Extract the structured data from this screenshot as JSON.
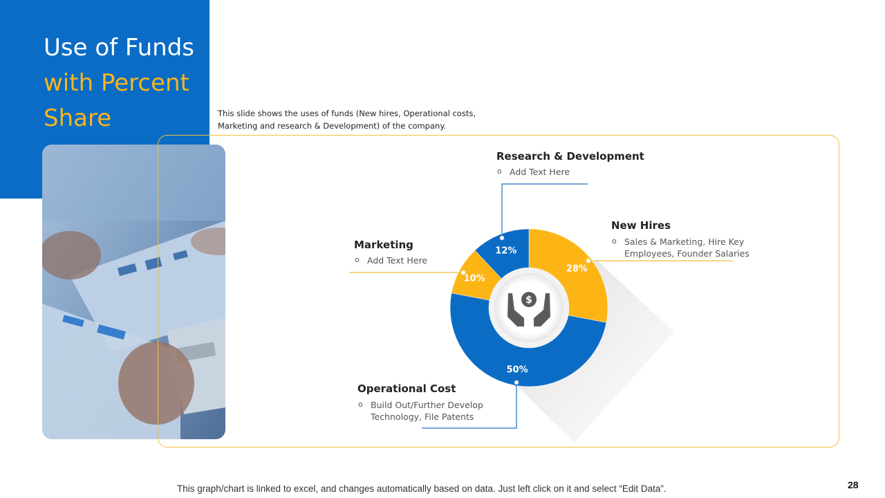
{
  "slide": {
    "title_line1": "Use of Funds",
    "title_line2": "with Percent",
    "title_line3": "Share",
    "subtitle_line1": "This slide shows the uses of funds (New hires, Operational costs,",
    "subtitle_line2": "Marketing and research & Development) of the company.",
    "footer": "This graph/chart is linked to excel, and changes automatically based on data. Just left click on it and select “Edit Data”.",
    "page_number": "28"
  },
  "colors": {
    "blue": "#0a6cc4",
    "yellow": "#fdb515",
    "frame": "#f2bf3a",
    "icon": "#5a5a5a"
  },
  "icons": {
    "center": "hands-holding-dollar-icon",
    "bullet": "circle-outline-bullet"
  },
  "callouts": {
    "research": {
      "title": "Research & Development",
      "bullet": "o",
      "text": "Add Text Here"
    },
    "new_hires": {
      "title": "New Hires",
      "bullet": "o",
      "text_line1": "Sales & Marketing, Hire Key",
      "text_line2": "Employees, Founder Salaries"
    },
    "marketing": {
      "title": "Marketing",
      "bullet": "o",
      "text": "Add Text Here"
    },
    "operational": {
      "title": "Operational Cost",
      "bullet": "o",
      "text_line1": "Build Out/Further Develop",
      "text_line2": "Technology, File Patents"
    }
  },
  "chart_data": {
    "type": "pie",
    "variant": "donut",
    "categories": [
      "New Hires",
      "Operational Cost",
      "Marketing",
      "Research & Development"
    ],
    "values": [
      28,
      50,
      10,
      12
    ],
    "labels": [
      "28%",
      "50%",
      "10%",
      "12%"
    ],
    "colors": [
      "#fdb515",
      "#0a6cc4",
      "#fdb515",
      "#0a6cc4"
    ],
    "start_angle_deg": 0,
    "direction": "clockwise"
  }
}
